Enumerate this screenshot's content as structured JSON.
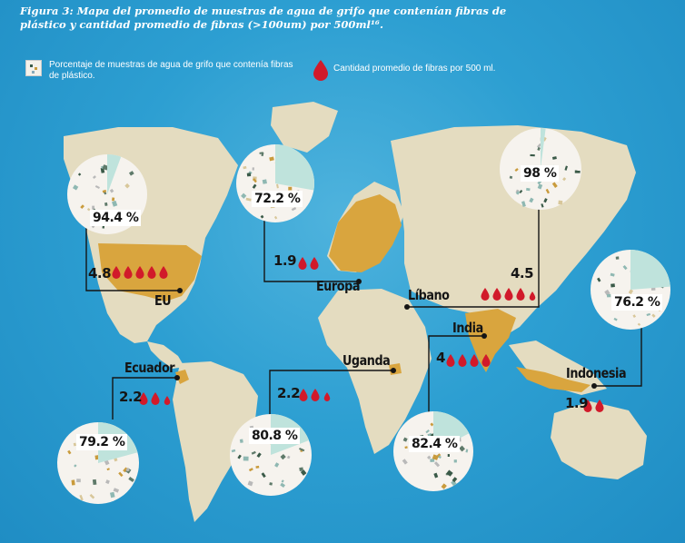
{
  "title": "Figura 3: Mapa del promedio de muestras de agua de grifo que contenían fibras de plástico y cantidad promedio de fibras (>100um) por 500ml¹⁶.",
  "legend": {
    "percent_label": "Porcentaje de muestras de agua de grifo que contenía fibras de plástico.",
    "fibers_label": "Cantidad promedio de fibras por 500 ml."
  },
  "colors": {
    "ocean": "#2d9fd2",
    "land": "#e4dcc0",
    "highlight": "#d9a53e",
    "drop": "#d11a2a",
    "pie_slice": "#bfe3dc"
  },
  "regions": [
    {
      "id": "eu",
      "name": "EU",
      "percent": 94.4,
      "percent_label": "94.4 %",
      "fibers": 4.8,
      "fibers_label": "4.8",
      "drops": 5
    },
    {
      "id": "europa",
      "name": "Europa",
      "percent": 72.2,
      "percent_label": "72.2 %",
      "fibers": 1.9,
      "fibers_label": "1.9",
      "drops": 2
    },
    {
      "id": "libano",
      "name": "Líbano",
      "percent": 98,
      "percent_label": "98 %",
      "fibers": 4.5,
      "fibers_label": "4.5",
      "drops": 4.5
    },
    {
      "id": "indonesia",
      "name": "Indonesia",
      "percent": 76.2,
      "percent_label": "76.2 %",
      "fibers": 1.9,
      "fibers_label": "1.9",
      "drops": 2
    },
    {
      "id": "india",
      "name": "India",
      "percent": 82.4,
      "percent_label": "82.4 %",
      "fibers": 4,
      "fibers_label": "4",
      "drops": 4
    },
    {
      "id": "uganda",
      "name": "Uganda",
      "percent": 80.8,
      "percent_label": "80.8 %",
      "fibers": 2.2,
      "fibers_label": "2.2",
      "drops": 2.5
    },
    {
      "id": "ecuador",
      "name": "Ecuador",
      "percent": 79.2,
      "percent_label": "79.2 %",
      "fibers": 2.2,
      "fibers_label": "2.2",
      "drops": 2.5
    }
  ]
}
